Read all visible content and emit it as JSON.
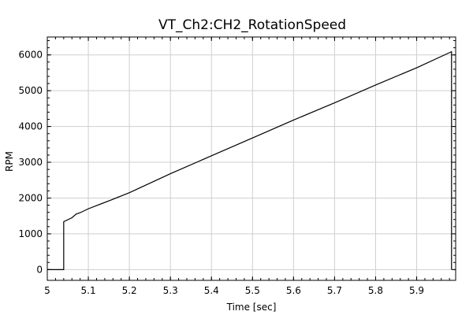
{
  "chart_data": {
    "type": "line",
    "title": "VT_Ch2:CH2_RotationSpeed",
    "xlabel": "Time [sec]",
    "ylabel": "RPM",
    "xlim": [
      5.0,
      5.995
    ],
    "ylim": [
      -300,
      6500
    ],
    "xticks": [
      5,
      5.1,
      5.2,
      5.3,
      5.4,
      5.5,
      5.6,
      5.7,
      5.8,
      5.9
    ],
    "xtick_labels": [
      "5",
      "5.1",
      "5.2",
      "5.3",
      "5.4",
      "5.5",
      "5.6",
      "5.7",
      "5.8",
      "5.9"
    ],
    "yticks": [
      0,
      1000,
      2000,
      3000,
      4000,
      5000,
      6000
    ],
    "ytick_labels": [
      "0",
      "1000",
      "2000",
      "3000",
      "4000",
      "5000",
      "6000"
    ],
    "grid": true,
    "series": [
      {
        "x": [
          5.0,
          5.04,
          5.04,
          5.06,
          5.07,
          5.08,
          5.1,
          5.12,
          5.15,
          5.2,
          5.3,
          5.4,
          5.5,
          5.6,
          5.7,
          5.8,
          5.9,
          5.985,
          5.985
        ],
        "y": [
          0,
          0,
          1340,
          1450,
          1550,
          1590,
          1700,
          1790,
          1920,
          2150,
          2680,
          3180,
          3680,
          4180,
          4660,
          5160,
          5640,
          6090,
          0
        ]
      }
    ]
  }
}
